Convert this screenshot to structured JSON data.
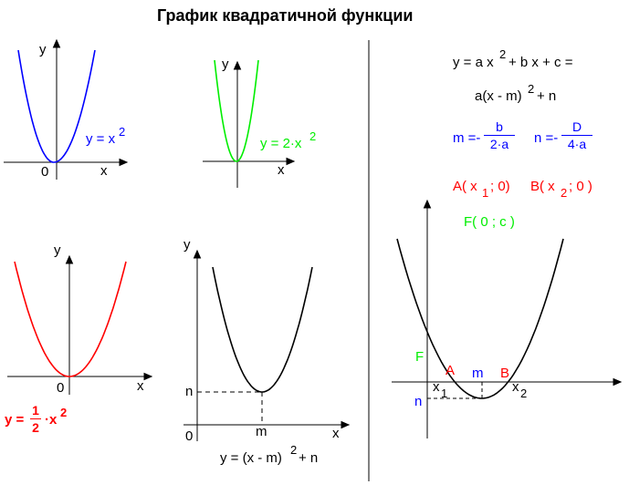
{
  "title": "График квадратичной функции",
  "colors": {
    "blue": "#0000ff",
    "green": "#00ee00",
    "red": "#ff0000",
    "black": "#000000"
  },
  "graph1": {
    "y_axis": "y",
    "x_axis": "x",
    "origin": "0",
    "label_lhs": "y = x",
    "label_exp": "2"
  },
  "graph2": {
    "y_axis": "y",
    "x_axis": "x",
    "label_lhs": "y = 2·x",
    "label_exp": "2"
  },
  "graph3": {
    "y_axis": "y",
    "x_axis": "x",
    "origin": "0",
    "label_lhs": "y =",
    "frac_num": "1",
    "frac_den": "2",
    "label_rhs": "·x",
    "label_exp": "2"
  },
  "graph4": {
    "y_axis": "y",
    "x_axis": "x",
    "origin": "0",
    "n_label": "n",
    "m_label": "m",
    "formula_lhs": "y = (x - m)",
    "formula_exp": "2",
    "formula_rhs": "+ n"
  },
  "formulas": {
    "general_lhs": "y = a x",
    "general_exp": "2",
    "general_rhs": "+ b x + c =",
    "vertex_lhs": "a(x - m)",
    "vertex_exp": "2",
    "vertex_rhs": "+ n",
    "m_lhs": "m =-",
    "m_num": "b",
    "m_den": "2·a",
    "n_lhs": "n =-",
    "n_num": "D",
    "n_den": "4·a",
    "a_point": "A( x",
    "a_sub": "1",
    "a_rest": "; 0)",
    "b_point": "B( x",
    "b_sub": "2",
    "b_rest": "; 0 )",
    "f_point": "F( 0 ; c )"
  },
  "graph5": {
    "F": "F",
    "A": "A",
    "m": "m",
    "B": "B",
    "n": "n",
    "x1_main": "x",
    "x1_sub": "1",
    "x2_main": "x",
    "x2_sub": "2"
  }
}
